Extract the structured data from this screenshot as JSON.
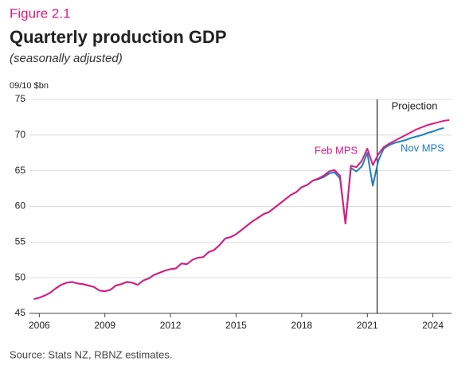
{
  "chart_data": {
    "type": "line",
    "figure_label": "Figure 2.1",
    "title": "Quarterly production GDP",
    "subtitle": "(seasonally adjusted)",
    "y_label": "09/10 $bn",
    "source": "Source: Stats NZ, RBNZ estimates.",
    "x": [
      2005.75,
      2006,
      2006.25,
      2006.5,
      2006.75,
      2007,
      2007.25,
      2007.5,
      2007.75,
      2008,
      2008.25,
      2008.5,
      2008.75,
      2009,
      2009.25,
      2009.5,
      2009.75,
      2010,
      2010.25,
      2010.5,
      2010.75,
      2011,
      2011.25,
      2011.5,
      2011.75,
      2012,
      2012.25,
      2012.5,
      2012.75,
      2013,
      2013.25,
      2013.5,
      2013.75,
      2014,
      2014.25,
      2014.5,
      2014.75,
      2015,
      2015.25,
      2015.5,
      2015.75,
      2016,
      2016.25,
      2016.5,
      2016.75,
      2017,
      2017.25,
      2017.5,
      2017.75,
      2018,
      2018.25,
      2018.5,
      2018.75,
      2019,
      2019.25,
      2019.5,
      2019.75,
      2020,
      2020.25,
      2020.5,
      2020.75,
      2021,
      2021.25,
      2021.5,
      2021.75,
      2022,
      2022.25,
      2022.5,
      2022.75,
      2023,
      2023.25,
      2023.5,
      2023.75,
      2024,
      2024.25,
      2024.5,
      2024.75
    ],
    "series": [
      {
        "name": "Nov MPS",
        "color": "#1a7fbf",
        "values": [
          47.0,
          47.2,
          47.5,
          47.9,
          48.5,
          49.0,
          49.3,
          49.4,
          49.2,
          49.1,
          48.9,
          48.7,
          48.2,
          48.1,
          48.3,
          48.9,
          49.1,
          49.4,
          49.3,
          49.0,
          49.6,
          49.9,
          50.4,
          50.7,
          51.0,
          51.2,
          51.3,
          52.0,
          51.9,
          52.5,
          52.8,
          52.9,
          53.6,
          53.9,
          54.6,
          55.5,
          55.7,
          56.1,
          56.7,
          57.3,
          57.9,
          58.4,
          58.9,
          59.2,
          59.8,
          60.4,
          61.0,
          61.6,
          62.0,
          62.7,
          63.0,
          63.6,
          63.8,
          64.1,
          64.6,
          64.8,
          63.9,
          57.6,
          65.4,
          64.9,
          65.6,
          67.5,
          62.9,
          66.4,
          68.1,
          68.6,
          68.9,
          69.1,
          69.3,
          69.6,
          69.8,
          70.0,
          70.3,
          70.5,
          70.8,
          71.0,
          null
        ]
      },
      {
        "name": "Feb MPS",
        "color": "#e0197d",
        "values": [
          47.0,
          47.2,
          47.5,
          47.9,
          48.5,
          49.0,
          49.3,
          49.4,
          49.2,
          49.1,
          48.9,
          48.7,
          48.2,
          48.1,
          48.3,
          48.9,
          49.1,
          49.4,
          49.3,
          49.0,
          49.6,
          49.9,
          50.4,
          50.7,
          51.0,
          51.2,
          51.3,
          52.0,
          51.9,
          52.5,
          52.8,
          52.9,
          53.6,
          53.9,
          54.6,
          55.5,
          55.7,
          56.1,
          56.7,
          57.3,
          57.9,
          58.4,
          58.9,
          59.2,
          59.8,
          60.4,
          61.0,
          61.6,
          62.0,
          62.7,
          63.0,
          63.6,
          63.9,
          64.3,
          64.9,
          65.1,
          64.3,
          57.6,
          65.7,
          65.5,
          66.4,
          68.1,
          65.8,
          67.3,
          68.3,
          68.8,
          69.2,
          69.6,
          70.0,
          70.4,
          70.8,
          71.1,
          71.4,
          71.6,
          71.8,
          72.0,
          72.1
        ]
      }
    ],
    "vline": {
      "x": 2021.45,
      "label": "Projection"
    },
    "xlim": [
      2005.55,
      2024.85
    ],
    "xticks": [
      2006,
      2009,
      2012,
      2015,
      2018,
      2021,
      2024
    ],
    "ylim": [
      45,
      75
    ],
    "yticks": [
      45,
      50,
      55,
      60,
      65,
      70,
      75
    ],
    "grid": true
  }
}
